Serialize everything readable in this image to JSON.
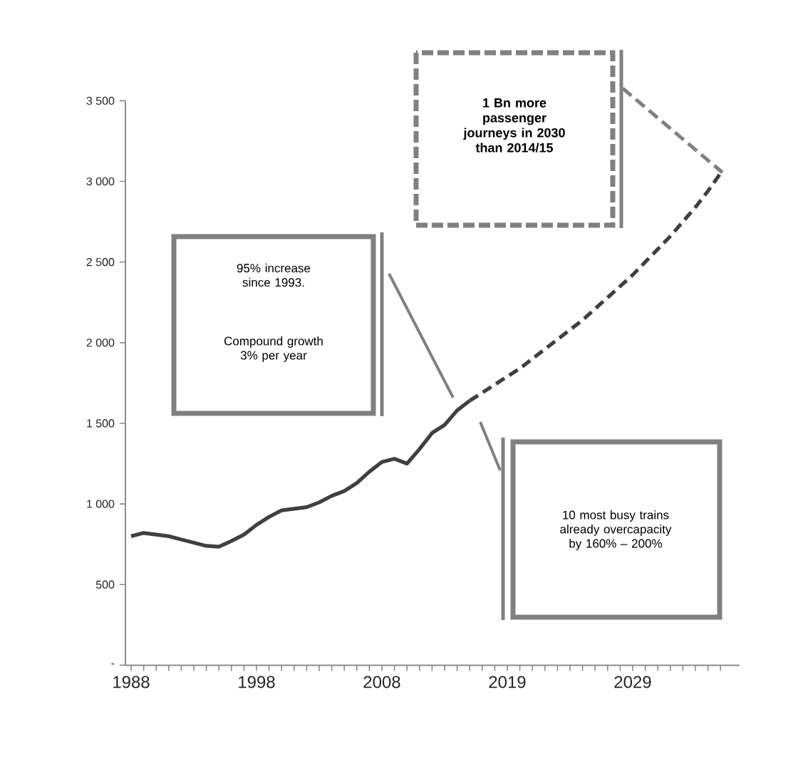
{
  "chart_data": {
    "type": "line",
    "categories": [
      "1988",
      null,
      null,
      null,
      null,
      null,
      null,
      null,
      null,
      null,
      "1998",
      null,
      null,
      null,
      null,
      null,
      null,
      null,
      null,
      null,
      "2008",
      null,
      null,
      null,
      null,
      null,
      null,
      null,
      null,
      null,
      "2019",
      null,
      null,
      null,
      null,
      null,
      null,
      null,
      null,
      null,
      "2029",
      null,
      null,
      null,
      null,
      null,
      null,
      null
    ],
    "series": [
      {
        "color": "#404040",
        "line_style": "solid",
        "values": [
          800,
          820,
          810,
          800,
          780,
          760,
          740,
          735,
          770,
          810,
          870,
          920,
          960,
          970,
          980,
          1010,
          1050,
          1080,
          1130,
          1200,
          1260,
          1280,
          1250,
          1340,
          1440,
          1490,
          1580,
          1640,
          null,
          null,
          null,
          null,
          null,
          null,
          null,
          null,
          null,
          null,
          null,
          null,
          null,
          null,
          null,
          null,
          null,
          null,
          null,
          null
        ]
      },
      {
        "color": "#404040",
        "line_style": "dashed",
        "values": [
          null,
          null,
          null,
          null,
          null,
          null,
          null,
          null,
          null,
          null,
          null,
          null,
          null,
          null,
          null,
          null,
          null,
          null,
          null,
          null,
          null,
          null,
          null,
          null,
          null,
          null,
          null,
          1640,
          1690,
          1740,
          1790,
          1840,
          1900,
          1960,
          2020,
          2080,
          2140,
          2210,
          2280,
          2350,
          2420,
          2500,
          2580,
          2660,
          2750,
          2840,
          2940,
          3050
        ]
      }
    ],
    "ylim": [
      0,
      3500
    ],
    "yticks": [
      {
        "value": 0,
        "label": "-"
      },
      500,
      {
        "value": 1000,
        "label": "1 000"
      },
      {
        "value": 1500,
        "label": "1 500"
      },
      {
        "value": 2000,
        "label": "2 000"
      },
      {
        "value": 2500,
        "label": "2 500"
      },
      {
        "value": 3000,
        "label": "3 000"
      },
      {
        "value": 3500,
        "label": "3 500"
      }
    ],
    "annotations": [
      "1 Bn more passenger journeys in 2030 than 2014/15",
      "95% increase since 1993.",
      "Compound growth 3% per year",
      "10 most busy trains already overcapacity by 160% – 200%"
    ],
    "grid": false
  }
}
